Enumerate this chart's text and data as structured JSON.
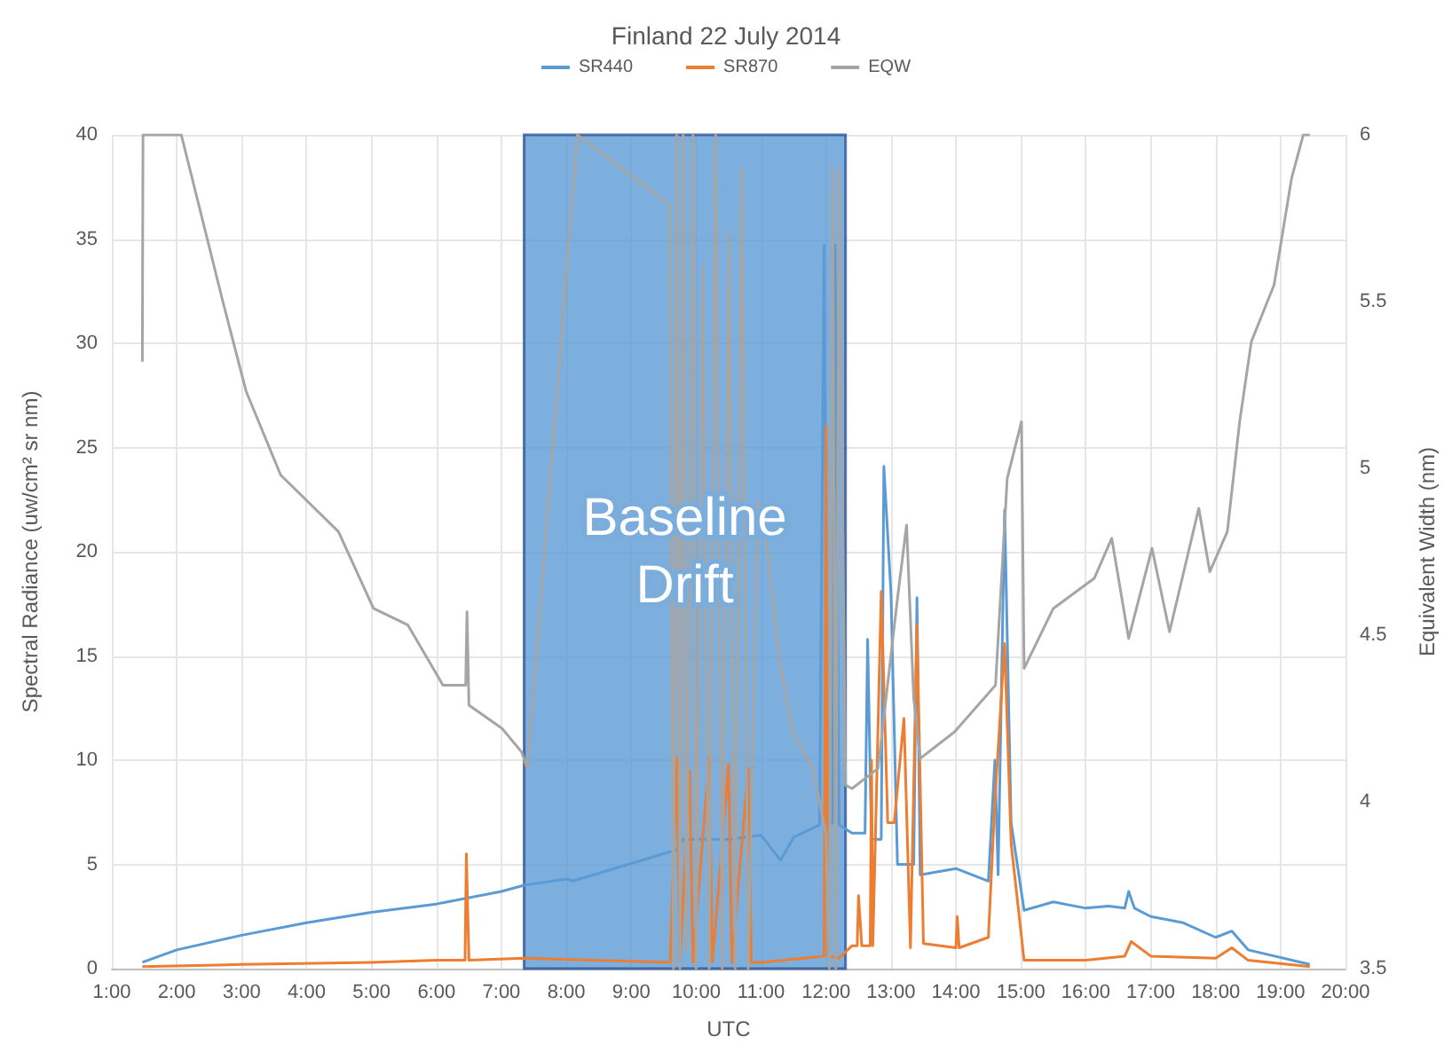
{
  "chart_data": {
    "type": "line",
    "title": "Finland 22 July 2014",
    "xlabel": "UTC",
    "ylabel": "Spectral Radiance (uw/cm² sr nm)",
    "y2label": "Equivalent Width (nm)",
    "xlim": [
      1,
      20
    ],
    "xticks": [
      {
        "value": 1,
        "label": "1:00"
      },
      {
        "value": 2,
        "label": "2:00"
      },
      {
        "value": 3,
        "label": "3:00"
      },
      {
        "value": 4,
        "label": "4:00"
      },
      {
        "value": 5,
        "label": "5:00"
      },
      {
        "value": 6,
        "label": "6:00"
      },
      {
        "value": 7,
        "label": "7:00"
      },
      {
        "value": 8,
        "label": "8:00"
      },
      {
        "value": 9,
        "label": "9:00"
      },
      {
        "value": 10,
        "label": "10:00"
      },
      {
        "value": 11,
        "label": "11:00"
      },
      {
        "value": 12,
        "label": "12:00"
      },
      {
        "value": 13,
        "label": "13:00"
      },
      {
        "value": 14,
        "label": "14:00"
      },
      {
        "value": 15,
        "label": "15:00"
      },
      {
        "value": 16,
        "label": "16:00"
      },
      {
        "value": 17,
        "label": "17:00"
      },
      {
        "value": 18,
        "label": "18:00"
      },
      {
        "value": 19,
        "label": "19:00"
      },
      {
        "value": 20,
        "label": "20:00"
      }
    ],
    "ylim": [
      0,
      40
    ],
    "yticks": [
      0,
      5,
      10,
      15,
      20,
      25,
      30,
      35,
      40
    ],
    "y2lim": [
      3.5,
      6
    ],
    "y2ticks": [
      3.5,
      4,
      4.5,
      5,
      5.5,
      6
    ],
    "grid": true,
    "legend": "top",
    "marker": "none",
    "line_style": "solid",
    "bands": [
      {
        "axis": "x",
        "from": 7.35,
        "to": 12.3,
        "label": "Baseline Drift",
        "color": "#5b9bd5"
      }
    ],
    "series": [
      {
        "name": "SR440",
        "color": "#5b9bd5",
        "x": [
          1.47,
          2,
          3,
          4,
          5,
          6,
          7,
          7.35,
          8,
          8.1,
          9.7,
          9.8,
          10.5,
          11,
          11.3,
          11.5,
          11.9,
          11.97,
          12.02,
          12.1,
          12.14,
          12.2,
          12.4,
          12.6,
          12.64,
          12.7,
          12.85,
          12.89,
          13,
          13.1,
          13.35,
          13.4,
          13.45,
          14,
          14.5,
          14.6,
          14.65,
          14.75,
          14.85,
          15.05,
          15.5,
          16,
          16.35,
          16.6,
          16.66,
          16.75,
          17,
          17.5,
          18,
          18.25,
          18.5,
          19.45
        ],
        "values": [
          0.3,
          0.9,
          1.6,
          2.2,
          2.7,
          3.1,
          3.7,
          4.0,
          4.3,
          4.2,
          5.7,
          6.2,
          6.2,
          6.4,
          5.2,
          6.3,
          6.9,
          34.7,
          7,
          7,
          34.7,
          6.9,
          6.5,
          6.5,
          15.8,
          6.2,
          6.2,
          24.1,
          18,
          5,
          5,
          17.8,
          4.5,
          4.8,
          4.2,
          10,
          4.5,
          22,
          7,
          2.8,
          3.2,
          2.9,
          3.0,
          2.9,
          3.7,
          2.9,
          2.5,
          2.2,
          1.5,
          1.8,
          0.9,
          0.2
        ]
      },
      {
        "name": "SR870",
        "color": "#ed7d31",
        "x": [
          1.47,
          3,
          5,
          6,
          6.44,
          6.46,
          6.5,
          7.35,
          9.6,
          9.7,
          9.75,
          9.9,
          9.95,
          10.2,
          10.25,
          10.5,
          10.55,
          10.8,
          10.85,
          11,
          11.97,
          12.0,
          12.03,
          12.2,
          12.4,
          12.48,
          12.5,
          12.55,
          12.68,
          12.7,
          12.72,
          12.85,
          12.95,
          13.05,
          13.2,
          13.3,
          13.4,
          13.5,
          14,
          14.02,
          14.05,
          14.5,
          14.6,
          14.75,
          14.85,
          15.05,
          16,
          16.6,
          16.7,
          17,
          18,
          18.25,
          18.5,
          19.45
        ],
        "values": [
          0.1,
          0.2,
          0.3,
          0.4,
          0.4,
          5.5,
          0.4,
          0.5,
          0.3,
          10.1,
          0.3,
          9.5,
          0.3,
          10.1,
          0.3,
          9.8,
          0.3,
          9.6,
          0.3,
          0.3,
          0.6,
          26,
          0.6,
          0.5,
          1.1,
          1.1,
          3.5,
          1.1,
          1.1,
          10,
          1.1,
          18.1,
          7,
          7,
          12,
          1,
          16.5,
          1.2,
          1.0,
          2.5,
          1.0,
          1.5,
          8,
          15.6,
          6,
          0.4,
          0.4,
          0.6,
          1.3,
          0.6,
          0.5,
          1.0,
          0.4,
          0.1
        ]
      },
      {
        "name": "EQW",
        "color": "#a5a5a5",
        "axis": "y2",
        "x": [
          1.47,
          1.48,
          2.07,
          2.71,
          3.07,
          3.6,
          4.49,
          5.03,
          5.56,
          6.1,
          6.45,
          6.47,
          6.5,
          7.01,
          7.31,
          7.4,
          8.17,
          9.59,
          9.65,
          9.7,
          9.75,
          9.8,
          9.85,
          9.95,
          10.0,
          10.1,
          10.2,
          10.3,
          10.4,
          10.5,
          10.6,
          10.7,
          10.8,
          10.95,
          11.1,
          11.3,
          11.5,
          11.8,
          12.0,
          12.05,
          12.1,
          12.15,
          12.2,
          12.3,
          12.4,
          12.8,
          13.1,
          13.24,
          13.35,
          13.45,
          13.98,
          14.61,
          14.79,
          15.01,
          15.05,
          15.5,
          16.13,
          16.4,
          16.66,
          17.02,
          17.29,
          17.74,
          17.91,
          18.18,
          18.37,
          18.55,
          18.9,
          19.17,
          19.35,
          19.45
        ],
        "values": [
          5.32,
          6,
          6,
          5.5,
          5.23,
          4.98,
          4.81,
          4.58,
          4.53,
          4.35,
          4.35,
          4.57,
          4.29,
          4.22,
          4.15,
          4.1,
          6,
          5.79,
          3.5,
          6,
          3.5,
          6,
          3.55,
          6,
          3.5,
          5.6,
          3.5,
          6,
          3.5,
          5.7,
          3.5,
          5.9,
          3.5,
          4.9,
          4.75,
          4.4,
          4.2,
          4.1,
          3.9,
          3.5,
          5.9,
          3.5,
          5.9,
          4.05,
          4.04,
          4.1,
          4.61,
          4.83,
          4.31,
          4.13,
          4.21,
          4.35,
          4.97,
          5.14,
          4.4,
          4.58,
          4.67,
          4.79,
          4.49,
          4.76,
          4.51,
          4.88,
          4.69,
          4.81,
          5.14,
          5.38,
          5.55,
          5.87,
          6,
          6
        ]
      }
    ]
  }
}
